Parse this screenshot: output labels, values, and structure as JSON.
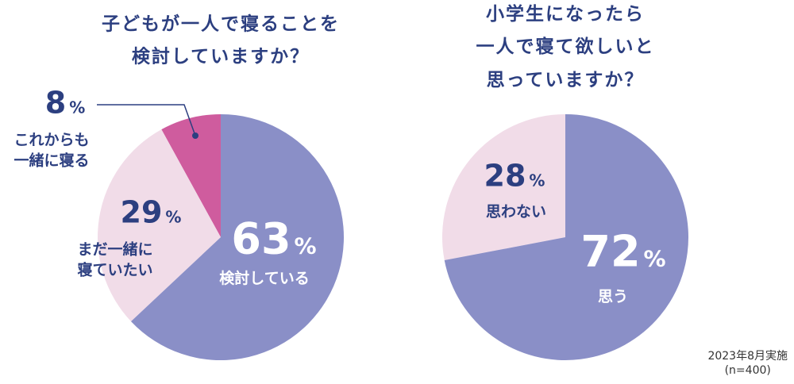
{
  "chart_data": [
    {
      "type": "pie",
      "title": "子どもが一人で寝ることを\n検討していますか？",
      "categories": [
        "検討している",
        "まだ一緒に\n寝ていたい",
        "これからも\n一緒に寝る"
      ],
      "values": [
        63,
        29,
        8
      ],
      "unit": "%",
      "colors": [
        "#8a8fc7",
        "#f1dce8",
        "#cf5c9e"
      ]
    },
    {
      "type": "pie",
      "title": "小学生になったら\n一人で寝て欲しいと\n思っていますか？",
      "categories": [
        "思う",
        "思わない"
      ],
      "values": [
        72,
        28
      ],
      "unit": "%",
      "colors": [
        "#8a8fc7",
        "#f1dce8"
      ]
    }
  ],
  "note": "2023年8月実施\n(n=400)"
}
